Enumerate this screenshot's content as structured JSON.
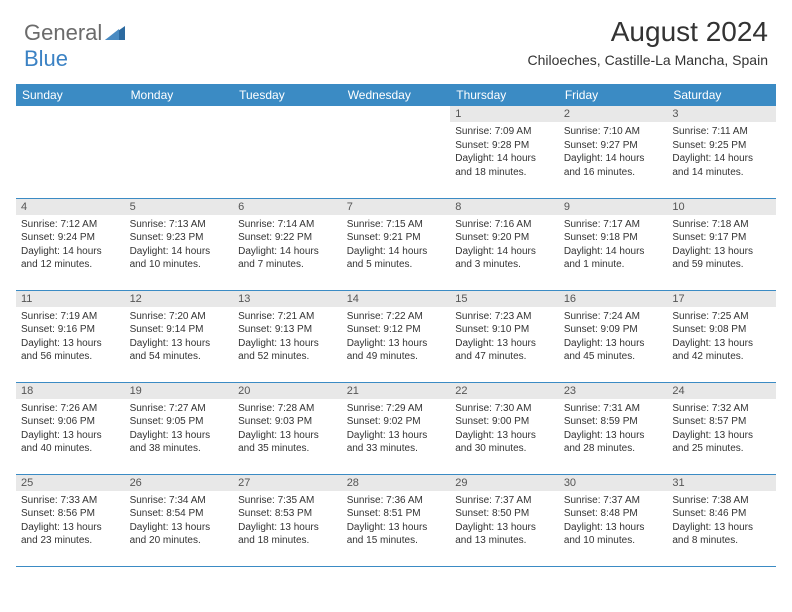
{
  "brand": {
    "part1": "General",
    "part2": "Blue",
    "icon_color": "#2c6aa0"
  },
  "title": "August 2024",
  "location": "Chiloeches, Castille-La Mancha, Spain",
  "colors": {
    "header_bg": "#3b8bc4",
    "header_text": "#ffffff",
    "daynum_bg": "#e8e8e8",
    "border": "#3b8bc4",
    "text": "#333333"
  },
  "day_headers": [
    "Sunday",
    "Monday",
    "Tuesday",
    "Wednesday",
    "Thursday",
    "Friday",
    "Saturday"
  ],
  "weeks": [
    [
      {
        "n": "",
        "sunrise": "",
        "sunset": "",
        "daylight": ""
      },
      {
        "n": "",
        "sunrise": "",
        "sunset": "",
        "daylight": ""
      },
      {
        "n": "",
        "sunrise": "",
        "sunset": "",
        "daylight": ""
      },
      {
        "n": "",
        "sunrise": "",
        "sunset": "",
        "daylight": ""
      },
      {
        "n": "1",
        "sunrise": "Sunrise: 7:09 AM",
        "sunset": "Sunset: 9:28 PM",
        "daylight": "Daylight: 14 hours and 18 minutes."
      },
      {
        "n": "2",
        "sunrise": "Sunrise: 7:10 AM",
        "sunset": "Sunset: 9:27 PM",
        "daylight": "Daylight: 14 hours and 16 minutes."
      },
      {
        "n": "3",
        "sunrise": "Sunrise: 7:11 AM",
        "sunset": "Sunset: 9:25 PM",
        "daylight": "Daylight: 14 hours and 14 minutes."
      }
    ],
    [
      {
        "n": "4",
        "sunrise": "Sunrise: 7:12 AM",
        "sunset": "Sunset: 9:24 PM",
        "daylight": "Daylight: 14 hours and 12 minutes."
      },
      {
        "n": "5",
        "sunrise": "Sunrise: 7:13 AM",
        "sunset": "Sunset: 9:23 PM",
        "daylight": "Daylight: 14 hours and 10 minutes."
      },
      {
        "n": "6",
        "sunrise": "Sunrise: 7:14 AM",
        "sunset": "Sunset: 9:22 PM",
        "daylight": "Daylight: 14 hours and 7 minutes."
      },
      {
        "n": "7",
        "sunrise": "Sunrise: 7:15 AM",
        "sunset": "Sunset: 9:21 PM",
        "daylight": "Daylight: 14 hours and 5 minutes."
      },
      {
        "n": "8",
        "sunrise": "Sunrise: 7:16 AM",
        "sunset": "Sunset: 9:20 PM",
        "daylight": "Daylight: 14 hours and 3 minutes."
      },
      {
        "n": "9",
        "sunrise": "Sunrise: 7:17 AM",
        "sunset": "Sunset: 9:18 PM",
        "daylight": "Daylight: 14 hours and 1 minute."
      },
      {
        "n": "10",
        "sunrise": "Sunrise: 7:18 AM",
        "sunset": "Sunset: 9:17 PM",
        "daylight": "Daylight: 13 hours and 59 minutes."
      }
    ],
    [
      {
        "n": "11",
        "sunrise": "Sunrise: 7:19 AM",
        "sunset": "Sunset: 9:16 PM",
        "daylight": "Daylight: 13 hours and 56 minutes."
      },
      {
        "n": "12",
        "sunrise": "Sunrise: 7:20 AM",
        "sunset": "Sunset: 9:14 PM",
        "daylight": "Daylight: 13 hours and 54 minutes."
      },
      {
        "n": "13",
        "sunrise": "Sunrise: 7:21 AM",
        "sunset": "Sunset: 9:13 PM",
        "daylight": "Daylight: 13 hours and 52 minutes."
      },
      {
        "n": "14",
        "sunrise": "Sunrise: 7:22 AM",
        "sunset": "Sunset: 9:12 PM",
        "daylight": "Daylight: 13 hours and 49 minutes."
      },
      {
        "n": "15",
        "sunrise": "Sunrise: 7:23 AM",
        "sunset": "Sunset: 9:10 PM",
        "daylight": "Daylight: 13 hours and 47 minutes."
      },
      {
        "n": "16",
        "sunrise": "Sunrise: 7:24 AM",
        "sunset": "Sunset: 9:09 PM",
        "daylight": "Daylight: 13 hours and 45 minutes."
      },
      {
        "n": "17",
        "sunrise": "Sunrise: 7:25 AM",
        "sunset": "Sunset: 9:08 PM",
        "daylight": "Daylight: 13 hours and 42 minutes."
      }
    ],
    [
      {
        "n": "18",
        "sunrise": "Sunrise: 7:26 AM",
        "sunset": "Sunset: 9:06 PM",
        "daylight": "Daylight: 13 hours and 40 minutes."
      },
      {
        "n": "19",
        "sunrise": "Sunrise: 7:27 AM",
        "sunset": "Sunset: 9:05 PM",
        "daylight": "Daylight: 13 hours and 38 minutes."
      },
      {
        "n": "20",
        "sunrise": "Sunrise: 7:28 AM",
        "sunset": "Sunset: 9:03 PM",
        "daylight": "Daylight: 13 hours and 35 minutes."
      },
      {
        "n": "21",
        "sunrise": "Sunrise: 7:29 AM",
        "sunset": "Sunset: 9:02 PM",
        "daylight": "Daylight: 13 hours and 33 minutes."
      },
      {
        "n": "22",
        "sunrise": "Sunrise: 7:30 AM",
        "sunset": "Sunset: 9:00 PM",
        "daylight": "Daylight: 13 hours and 30 minutes."
      },
      {
        "n": "23",
        "sunrise": "Sunrise: 7:31 AM",
        "sunset": "Sunset: 8:59 PM",
        "daylight": "Daylight: 13 hours and 28 minutes."
      },
      {
        "n": "24",
        "sunrise": "Sunrise: 7:32 AM",
        "sunset": "Sunset: 8:57 PM",
        "daylight": "Daylight: 13 hours and 25 minutes."
      }
    ],
    [
      {
        "n": "25",
        "sunrise": "Sunrise: 7:33 AM",
        "sunset": "Sunset: 8:56 PM",
        "daylight": "Daylight: 13 hours and 23 minutes."
      },
      {
        "n": "26",
        "sunrise": "Sunrise: 7:34 AM",
        "sunset": "Sunset: 8:54 PM",
        "daylight": "Daylight: 13 hours and 20 minutes."
      },
      {
        "n": "27",
        "sunrise": "Sunrise: 7:35 AM",
        "sunset": "Sunset: 8:53 PM",
        "daylight": "Daylight: 13 hours and 18 minutes."
      },
      {
        "n": "28",
        "sunrise": "Sunrise: 7:36 AM",
        "sunset": "Sunset: 8:51 PM",
        "daylight": "Daylight: 13 hours and 15 minutes."
      },
      {
        "n": "29",
        "sunrise": "Sunrise: 7:37 AM",
        "sunset": "Sunset: 8:50 PM",
        "daylight": "Daylight: 13 hours and 13 minutes."
      },
      {
        "n": "30",
        "sunrise": "Sunrise: 7:37 AM",
        "sunset": "Sunset: 8:48 PM",
        "daylight": "Daylight: 13 hours and 10 minutes."
      },
      {
        "n": "31",
        "sunrise": "Sunrise: 7:38 AM",
        "sunset": "Sunset: 8:46 PM",
        "daylight": "Daylight: 13 hours and 8 minutes."
      }
    ]
  ]
}
